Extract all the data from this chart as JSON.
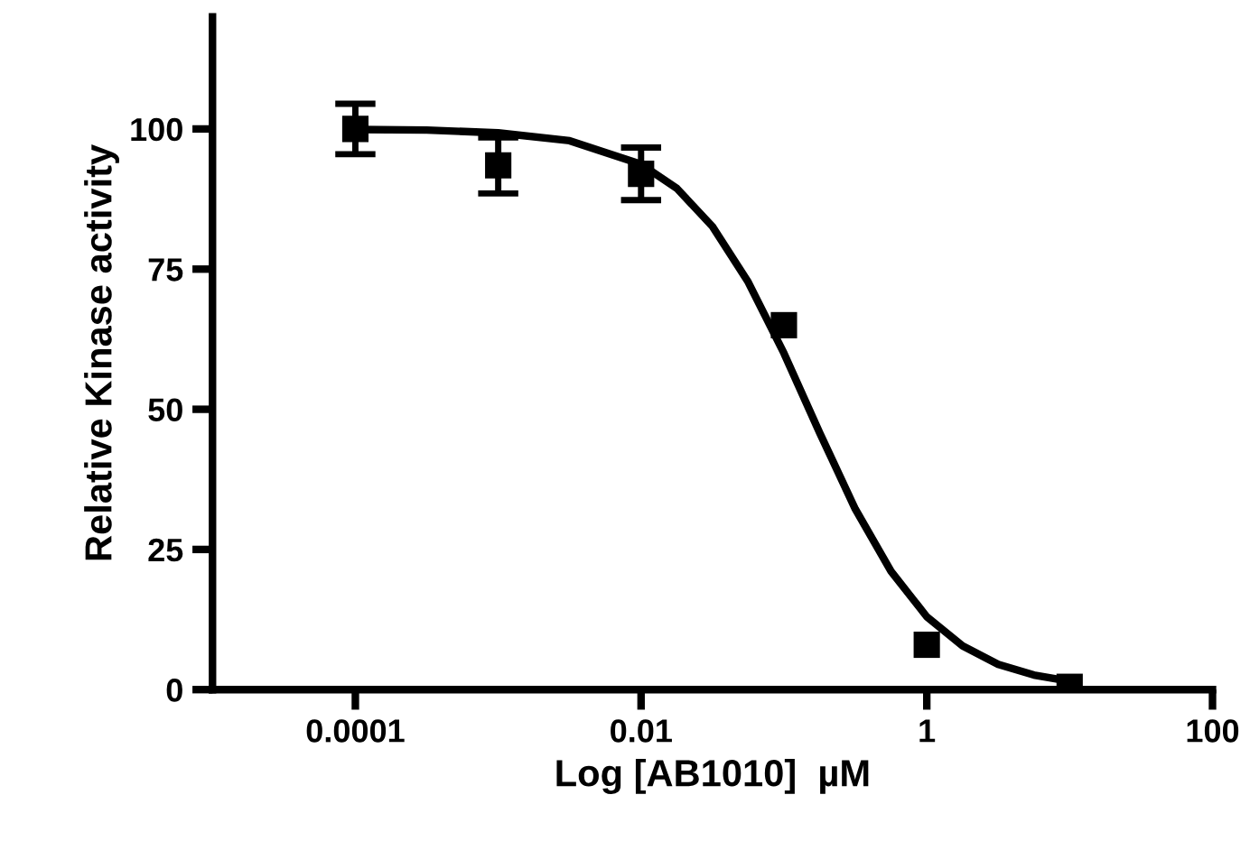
{
  "chart_data": {
    "type": "scatter",
    "xlabel": "Log [AB1010]  µM",
    "ylabel": "Relative Kinase activity",
    "log": "x",
    "xlim": [
      1e-05,
      100
    ],
    "xticks": [
      0.0001,
      0.01,
      1,
      100
    ],
    "ylim": [
      0,
      120
    ],
    "yticks": [
      0,
      25,
      50,
      75,
      100
    ],
    "grid": false,
    "series": [
      {
        "color": "#000000",
        "marker": "square",
        "x": [
          0.0001,
          0.001,
          0.01,
          0.1,
          1,
          10
        ],
        "values": [
          100,
          93.5,
          92,
          65,
          8,
          0.5
        ],
        "errors": [
          4.5,
          5,
          4.7,
          null,
          null,
          null
        ]
      },
      {
        "type": "line",
        "color": "#000000",
        "marker": "none",
        "line_style": "solid",
        "x": [
          0.0001,
          0.000316,
          0.001,
          0.00316,
          0.01,
          0.0178,
          0.0316,
          0.0562,
          0.1,
          0.178,
          0.316,
          0.562,
          1,
          1.78,
          3.16,
          5.62,
          10
        ],
        "values": [
          99.9,
          99.8,
          99.3,
          97.9,
          93.7,
          89.4,
          82.6,
          72.7,
          60.0,
          45.8,
          32.2,
          21.1,
          13.0,
          7.8,
          4.5,
          2.6,
          1.5
        ]
      }
    ]
  }
}
